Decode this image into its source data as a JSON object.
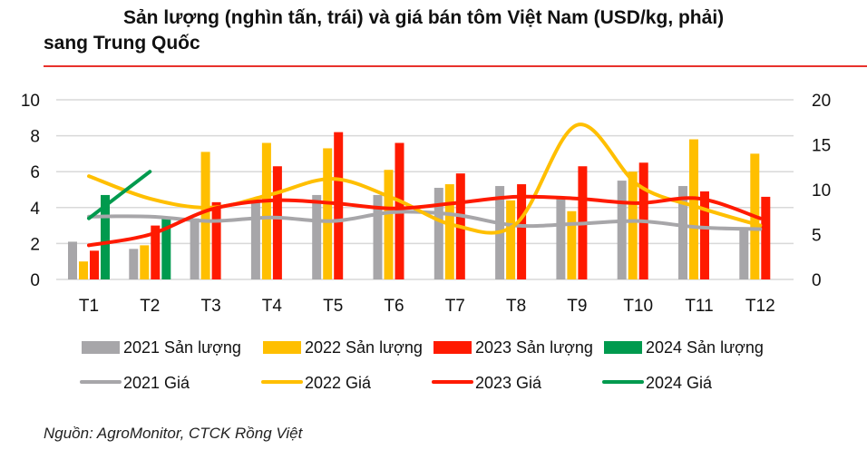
{
  "title_line1": "Sản lượng (nghìn tấn, trái) và giá bán tôm Việt Nam (USD/kg, phải)",
  "title_line2": "sang Trung Quốc",
  "source": "Nguồn: AgroMonitor, CTCK Rồng Việt",
  "chart_data": {
    "type": "bar+line",
    "categories": [
      "T1",
      "T2",
      "T3",
      "T4",
      "T5",
      "T6",
      "T7",
      "T8",
      "T9",
      "T10",
      "T11",
      "T12"
    ],
    "y_left": {
      "range": [
        0,
        10
      ],
      "ticks": [
        "0",
        "2",
        "4",
        "6",
        "8",
        "10"
      ]
    },
    "y_right": {
      "range": [
        0,
        20
      ],
      "ticks": [
        "0",
        "5",
        "10",
        "15",
        "20"
      ]
    },
    "grid": true,
    "legend_position": "bottom",
    "bar_series": [
      {
        "name": "2021 Sản lượng",
        "color": "#a7a6a9",
        "values": [
          2.1,
          1.7,
          3.4,
          4.3,
          4.7,
          4.7,
          5.1,
          5.2,
          4.6,
          5.5,
          5.2,
          2.9
        ]
      },
      {
        "name": "2022 Sản lượng",
        "color": "#ffbf00",
        "values": [
          1.0,
          1.9,
          7.1,
          7.6,
          7.3,
          6.1,
          5.3,
          4.4,
          3.8,
          6.0,
          7.8,
          7.0
        ]
      },
      {
        "name": "2023 Sản lượng",
        "color": "#ff1a00",
        "values": [
          1.6,
          3.0,
          4.3,
          6.3,
          8.2,
          7.6,
          5.9,
          5.3,
          6.3,
          6.5,
          4.9,
          4.6
        ]
      },
      {
        "name": "2024 Sản lượng",
        "color": "#009a4e",
        "values": [
          4.7,
          3.5
        ]
      }
    ],
    "line_series": [
      {
        "name": "2021 Giá",
        "color": "#a7a6a9",
        "values": [
          7.0,
          7.0,
          6.5,
          6.9,
          6.5,
          7.5,
          7.2,
          6.0,
          6.2,
          6.5,
          5.8,
          5.6
        ]
      },
      {
        "name": "2022 Giá",
        "color": "#ffbf00",
        "values": [
          11.5,
          9.0,
          8.0,
          9.5,
          11.2,
          9.0,
          6.0,
          6.2,
          17.2,
          10.5,
          8.0,
          6.0
        ]
      },
      {
        "name": "2023 Giá",
        "color": "#ff1a00",
        "values": [
          3.8,
          5.0,
          7.8,
          8.8,
          8.5,
          7.9,
          8.5,
          9.2,
          9.0,
          8.5,
          9.0,
          6.8
        ]
      },
      {
        "name": "2024 Giá",
        "color": "#009a4e",
        "values": [
          6.8,
          12.0
        ]
      }
    ]
  }
}
